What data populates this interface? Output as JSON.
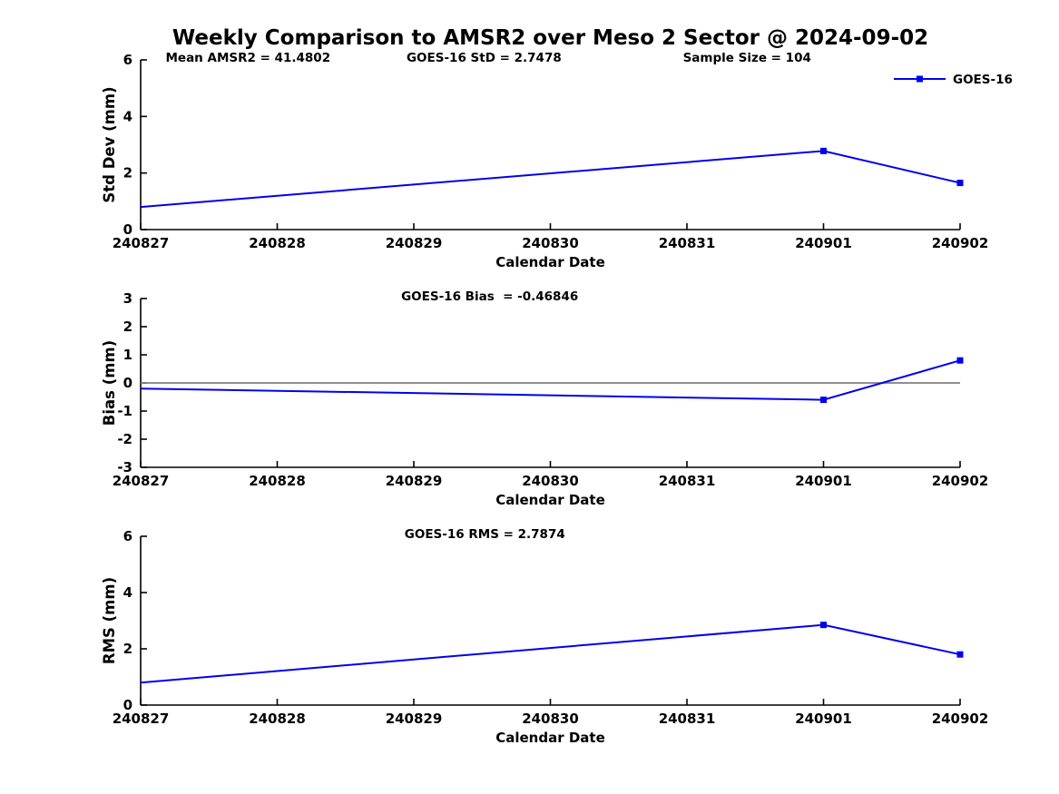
{
  "title": "Weekly Comparison to AMSR2 over Meso 2 Sector @ 2024-09-02",
  "colors": {
    "series": "#0000EE",
    "zero_line": "#808080",
    "axis": "#000000",
    "text": "#000000",
    "background": "#ffffff"
  },
  "chart_data": [
    {
      "type": "line",
      "ylabel": "Std Dev (mm)",
      "xlabel": "Calendar Date",
      "ylim": [
        0,
        6
      ],
      "yticks": [
        0,
        2,
        4,
        6
      ],
      "categories": [
        "240827",
        "240828",
        "240829",
        "240830",
        "240831",
        "240901",
        "240902"
      ],
      "annotations": [
        "Mean AMSR2 = 41.4802",
        "GOES-16 StD = 2.7478",
        "Sample Size = 104"
      ],
      "grid": false,
      "legend": {
        "labels": [
          "GOES-16"
        ],
        "position": "top-right"
      },
      "series": [
        {
          "name": "GOES-16",
          "x": [
            "240827",
            "240901",
            "240902"
          ],
          "values": [
            0.8,
            2.78,
            1.65
          ]
        }
      ]
    },
    {
      "type": "line",
      "ylabel": "Bias (mm)",
      "xlabel": "Calendar Date",
      "ylim": [
        -3,
        3
      ],
      "yticks": [
        -3,
        -2,
        -1,
        0,
        1,
        2,
        3
      ],
      "categories": [
        "240827",
        "240828",
        "240829",
        "240830",
        "240831",
        "240901",
        "240902"
      ],
      "annotations": [
        "GOES-16 Bias  = -0.46846"
      ],
      "zero_line": true,
      "grid": false,
      "series": [
        {
          "name": "GOES-16",
          "x": [
            "240827",
            "240901",
            "240902"
          ],
          "values": [
            -0.2,
            -0.6,
            0.8
          ]
        }
      ]
    },
    {
      "type": "line",
      "ylabel": "RMS (mm)",
      "xlabel": "Calendar Date",
      "ylim": [
        0,
        6
      ],
      "yticks": [
        0,
        2,
        4,
        6
      ],
      "categories": [
        "240827",
        "240828",
        "240829",
        "240830",
        "240831",
        "240901",
        "240902"
      ],
      "annotations": [
        "GOES-16 RMS = 2.7874"
      ],
      "grid": false,
      "series": [
        {
          "name": "GOES-16",
          "x": [
            "240827",
            "240901",
            "240902"
          ],
          "values": [
            0.8,
            2.85,
            1.8
          ]
        }
      ]
    }
  ]
}
